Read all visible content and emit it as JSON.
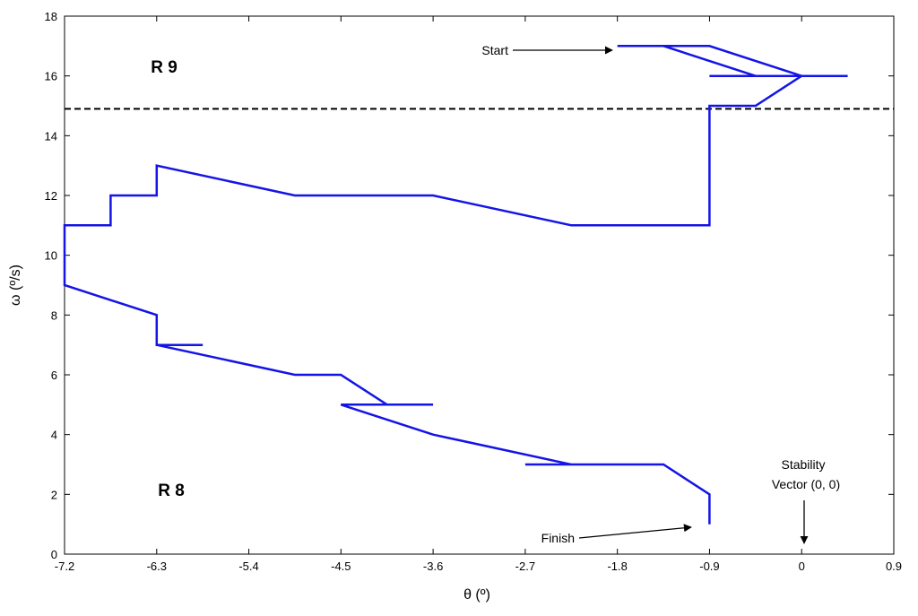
{
  "chart_data": {
    "type": "line",
    "xlabel": "θ (º)",
    "ylabel": "ω (º/s)",
    "xlim": [
      -7.2,
      0.9
    ],
    "ylim": [
      0,
      18
    ],
    "xticks": [
      -7.2,
      -6.3,
      -5.4,
      -4.5,
      -3.6,
      -2.7,
      -1.8,
      -0.9,
      0,
      0.9
    ],
    "xtick_labels": [
      "-7.2",
      "-6.3",
      "-5.4",
      "-4.5",
      "-3.6",
      "-2.7",
      "-1.8",
      "-0.9",
      "0",
      "0.9"
    ],
    "yticks": [
      0,
      2,
      4,
      6,
      8,
      10,
      12,
      14,
      16,
      18
    ],
    "ytick_labels": [
      "0",
      "2",
      "4",
      "6",
      "8",
      "10",
      "12",
      "14",
      "16",
      "18"
    ],
    "grid": false,
    "colors": {
      "trajectory": "#1414e6",
      "threshold": "#000000"
    },
    "threshold_line": {
      "y": 14.9,
      "style": "dashed"
    },
    "trajectory": {
      "x": [
        -1.8,
        -1.35,
        -0.45,
        -1.35,
        -0.9,
        0,
        -0.9,
        -0.45,
        0,
        0.45,
        0,
        -0.45,
        -0.9,
        -0.9,
        -0.9,
        -2.25,
        -3.6,
        -4.95,
        -6.3,
        -6.3,
        -6.75,
        -6.75,
        -7.2,
        -7.2,
        -6.3,
        -6.3,
        -5.85,
        -6.3,
        -4.95,
        -4.5,
        -4.05,
        -3.6,
        -4.05,
        -4.5,
        -3.6,
        -2.25,
        -2.7,
        -1.35,
        -0.9,
        -0.9
      ],
      "y": [
        17,
        17,
        16,
        17,
        17,
        16,
        16,
        16,
        16,
        16,
        16,
        15,
        15,
        11,
        11,
        11,
        12,
        12,
        13,
        12,
        12,
        11,
        11,
        9,
        8,
        7,
        7,
        7,
        6,
        6,
        5,
        5,
        5,
        5,
        4,
        3,
        3,
        3,
        2,
        1
      ]
    },
    "region_labels": [
      "R 9",
      "R 8"
    ],
    "annotations": [
      {
        "text": "Start",
        "x": -1.8,
        "y": 17
      },
      {
        "text": "Finish",
        "x": -1.05,
        "y": 0.9
      },
      {
        "text_lines": [
          "Stability",
          "Vector (0, 0)"
        ],
        "x": 0,
        "y": 0.3
      }
    ]
  }
}
